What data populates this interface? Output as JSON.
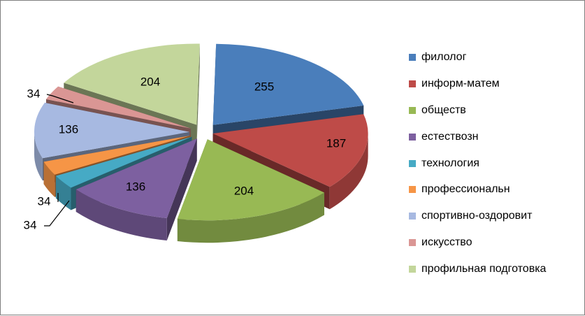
{
  "chart_data": {
    "type": "pie",
    "title": "",
    "style": "3d-exploded",
    "legend_position": "right",
    "categories": [
      "филолог",
      "информ-матем",
      "обществ",
      "естествозн",
      "технология",
      "профессиональн",
      "спортивно-оздоровит",
      "искусство",
      "профильная подготовка"
    ],
    "values": [
      255,
      187,
      204,
      136,
      34,
      34,
      136,
      34,
      204
    ],
    "data_labels": [
      "255",
      "187",
      "204",
      "136",
      "34",
      "34",
      "136",
      "34",
      "204"
    ],
    "colors": [
      "#4a7ebb",
      "#be4b48",
      "#98b954",
      "#7d60a0",
      "#46aac5",
      "#f69546",
      "#a7b9e1",
      "#da9694",
      "#c3d69b"
    ]
  }
}
